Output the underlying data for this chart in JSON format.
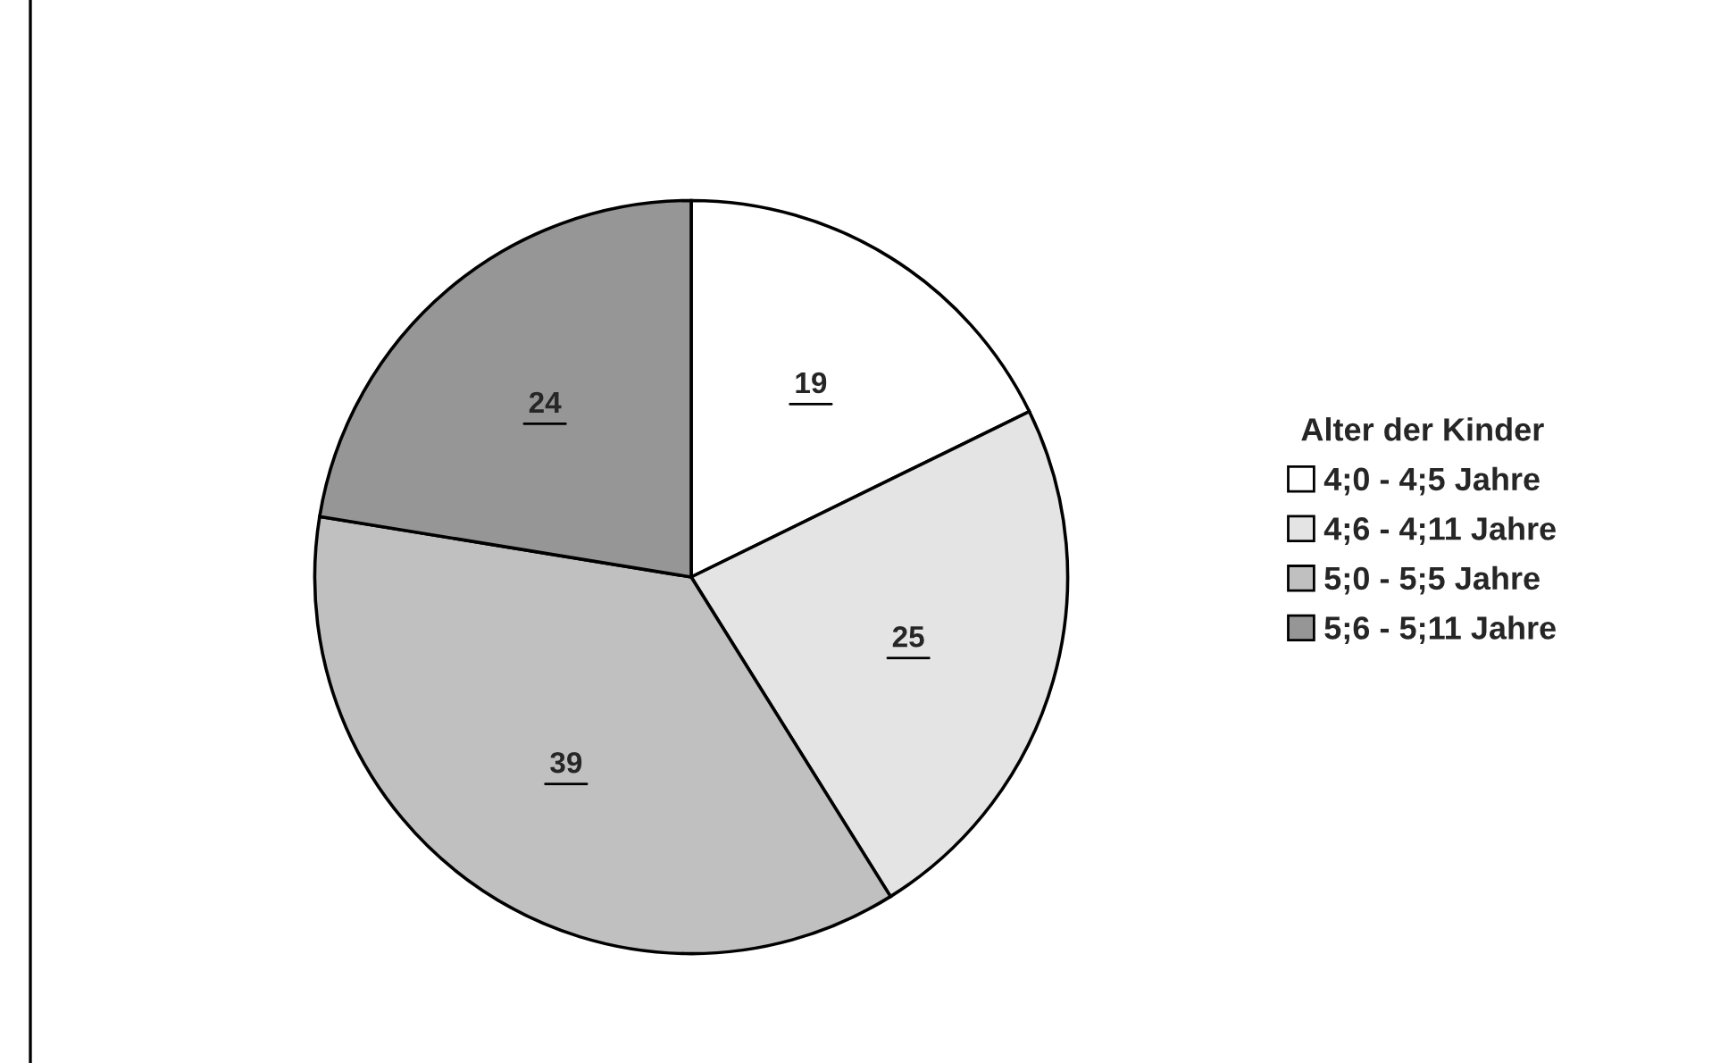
{
  "chart_data": {
    "type": "pie",
    "legend_title": "Alter der Kinder",
    "categories": [
      "4;0 - 4;5 Jahre",
      "4;6 - 4;11 Jahre",
      "5;0 - 5;5 Jahre",
      "5;6 - 5;11 Jahre"
    ],
    "values": [
      19,
      25,
      39,
      24
    ],
    "colors": [
      "#ffffff",
      "#e4e4e4",
      "#c0c0c0",
      "#969696"
    ],
    "data_labels": true,
    "legend": "right"
  }
}
